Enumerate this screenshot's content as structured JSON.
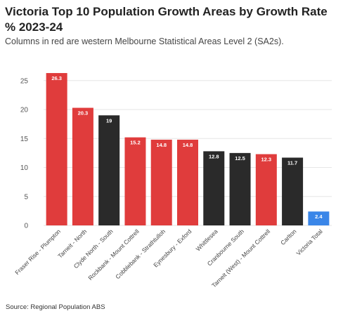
{
  "chart_data": {
    "type": "bar",
    "title": "Victoria Top 10 Population Growth Areas by Growth Rate % 2023-24",
    "subtitle": "Columns in red are western Melbourne Statistical Areas Level 2 (SA2s).",
    "source": "Source: Regional Population ABS",
    "categories": [
      "Fraser Rise - Plumpton",
      "Tarneit - North",
      "Clyde North - South",
      "Rockbank - Mount Cottrell",
      "Cobblebank - Strathtulloh",
      "Eynesbury - Exford",
      "Whittlesea",
      "Cranbourne South",
      "Tarneit (West) - Mount Cottrell",
      "Carlton",
      "Victoria Total"
    ],
    "values": [
      26.3,
      20.3,
      19,
      15.2,
      14.8,
      14.8,
      12.8,
      12.5,
      12.3,
      11.7,
      2.4
    ],
    "value_labels": [
      "26.3",
      "20.3",
      "19",
      "15.2",
      "14.8",
      "14.8",
      "12.8",
      "12.5",
      "12.3",
      "11.7",
      "2.4"
    ],
    "bar_colors": [
      "#e03c3c",
      "#e03c3c",
      "#2a2a2a",
      "#e03c3c",
      "#e03c3c",
      "#e03c3c",
      "#2a2a2a",
      "#2a2a2a",
      "#e03c3c",
      "#2a2a2a",
      "#3a86e8"
    ],
    "yticks": [
      "0",
      "5",
      "10",
      "15",
      "20",
      "25"
    ],
    "ylim": [
      0,
      28
    ],
    "xlabel": "",
    "ylabel": "",
    "grid": true,
    "legend": "none"
  }
}
